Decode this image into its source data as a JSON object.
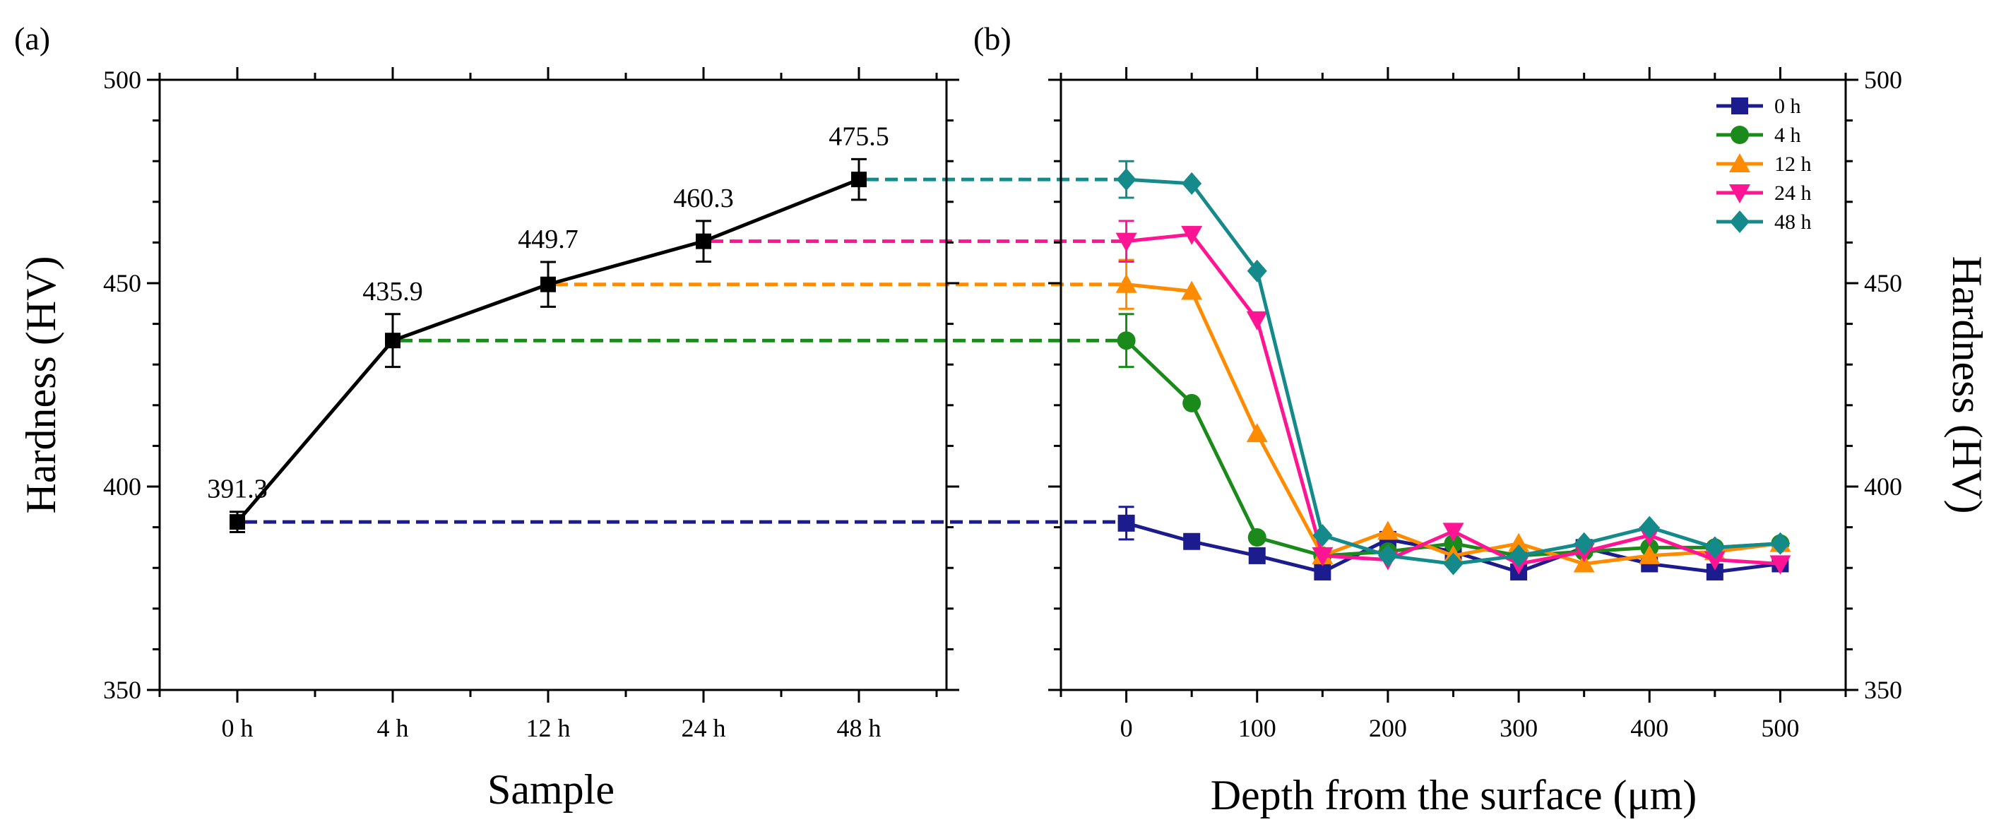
{
  "chart_data": [
    {
      "id": "a",
      "type": "line",
      "panel_label": "(a)",
      "categories": [
        "0 h",
        "4 h",
        "12 h",
        "24 h",
        "48 h"
      ],
      "values": [
        391.3,
        435.9,
        449.7,
        460.3,
        475.5
      ],
      "value_labels": [
        "391.3",
        "435.9",
        "449.7",
        "460.3",
        "475.5"
      ],
      "errors": [
        2.5,
        6.5,
        5.5,
        5.0,
        5.0
      ],
      "xlabel": "Sample",
      "ylabel": "Hardness (HV)",
      "ylim": [
        350,
        500
      ],
      "yticks": [
        350,
        400,
        450,
        500
      ],
      "ytick_labels": [
        "350",
        "400",
        "450",
        "500"
      ],
      "series_color": "#000000",
      "connector_colors": [
        "#1c1c8f",
        "#1a8a1a",
        "#ff8c00",
        "#ff1493",
        "#148a8a"
      ]
    },
    {
      "id": "b",
      "type": "line",
      "panel_label": "(b)",
      "xlabel": "Depth from the surface (μm)",
      "ylabel": "Hardness (HV)",
      "xlim": [
        -50,
        550
      ],
      "ylim": [
        350,
        500
      ],
      "xticks": [
        0,
        100,
        200,
        300,
        400,
        500
      ],
      "xtick_labels": [
        "0",
        "100",
        "200",
        "300",
        "400",
        "500"
      ],
      "yticks": [
        350,
        400,
        450,
        500
      ],
      "ytick_labels": [
        "350",
        "400",
        "450",
        "500"
      ],
      "legend_position": "top-right",
      "x": [
        0,
        50,
        100,
        150,
        200,
        250,
        300,
        350,
        400,
        450,
        500
      ],
      "series": [
        {
          "name": "0 h",
          "color": "#1c1c8f",
          "marker": "square",
          "values": [
            391,
            386.5,
            383,
            379,
            387,
            384,
            379,
            385,
            381,
            379,
            381
          ],
          "error0": 4
        },
        {
          "name": "4 h",
          "color": "#1a8a1a",
          "marker": "circle",
          "values": [
            435.9,
            420.5,
            387.5,
            383,
            384,
            386,
            383,
            384,
            385,
            385,
            386
          ],
          "error0": 6.5
        },
        {
          "name": "12 h",
          "color": "#ff8c00",
          "marker": "triangle-up",
          "values": [
            449.7,
            448,
            413,
            383,
            389,
            383,
            386,
            381,
            383,
            384,
            386
          ],
          "error0": 6
        },
        {
          "name": "24 h",
          "color": "#ff1493",
          "marker": "triangle-down",
          "values": [
            460.3,
            462,
            441,
            383,
            382,
            389,
            381,
            384,
            388,
            382,
            381
          ],
          "error0": 5
        },
        {
          "name": "48 h",
          "color": "#148a8a",
          "marker": "diamond",
          "values": [
            475.5,
            474.5,
            453,
            388,
            383,
            381,
            383,
            386,
            390,
            385,
            386
          ],
          "error0": 4.5
        }
      ]
    }
  ]
}
